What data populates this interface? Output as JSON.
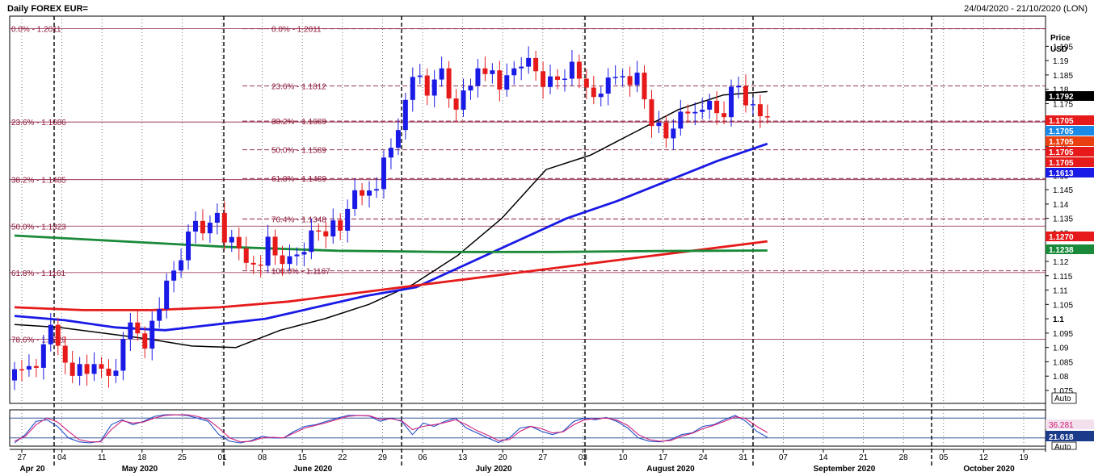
{
  "header": {
    "title": "Daily FOREX EUR=",
    "range": "24/04/2020 - 21/10/2020 (LON)"
  },
  "price_axis": {
    "title": "Price",
    "unit": "USD",
    "auto_label": "Auto",
    "auto_label_lower": "Auto"
  },
  "colors": {
    "up": "#1a1ae6",
    "down": "#e61a1a",
    "ma_black": "#000000",
    "ma_blue": "#1a1ae6",
    "ma_red": "#e61a1a",
    "ma_green": "#1a8a3a",
    "fib": "#8b1a3a",
    "stoch_k": "#2050c8",
    "stoch_d": "#d0207a"
  },
  "chart_data": [
    {
      "type": "candlestick",
      "title": "Daily FOREX EUR=",
      "ylabel": "Price USD",
      "ylim": [
        1.0705,
        1.2055
      ],
      "y_ticks": [
        1.075,
        1.08,
        1.085,
        1.09,
        1.095,
        1.1,
        1.105,
        1.11,
        1.115,
        1.12,
        1.125,
        1.13,
        1.135,
        1.14,
        1.145,
        1.15,
        1.155,
        1.16,
        1.165,
        1.17,
        1.175,
        1.18,
        1.185,
        1.19,
        1.195
      ],
      "y_tick_labels": [
        "1.075",
        "1.08",
        "1.085",
        "1.09",
        "1.095",
        "1.1",
        "1.105",
        "1.11",
        "1.115",
        "1.12",
        "1.125",
        "1.13",
        "1.135",
        "1.14",
        "1.145",
        "1.15",
        "1.155",
        "1.16",
        "1.165",
        "1.17",
        "1.175",
        "1.18",
        "1.185",
        "1.19",
        "1.195"
      ],
      "x_day_labels": [
        "27",
        "04",
        "11",
        "18",
        "25",
        "01",
        "08",
        "15",
        "22",
        "29",
        "06",
        "13",
        "20",
        "27",
        "03",
        "10",
        "17",
        "24",
        "31",
        "07",
        "14",
        "21",
        "28",
        "05",
        "12",
        "19"
      ],
      "x_month_labels": [
        "Apr 20",
        "May 2020",
        "June 2020",
        "July 2020",
        "August 2020",
        "September 2020",
        "October 2020"
      ],
      "close": [
        1.0824,
        1.0823,
        1.0835,
        1.0829,
        1.0911,
        1.0979,
        1.0906,
        1.0847,
        1.0801,
        1.0842,
        1.0808,
        1.0842,
        1.0826,
        1.0801,
        1.0819,
        1.0929,
        1.0987,
        1.0949,
        1.0896,
        1.0993,
        1.1034,
        1.1133,
        1.1168,
        1.1204,
        1.1304,
        1.1341,
        1.1298,
        1.1335,
        1.1369,
        1.1266,
        1.1285,
        1.1245,
        1.1195,
        1.1189,
        1.1185,
        1.1286,
        1.1221,
        1.1191,
        1.1218,
        1.1224,
        1.1233,
        1.1308,
        1.1305,
        1.1287,
        1.1343,
        1.1307,
        1.1383,
        1.1448,
        1.1429,
        1.1447,
        1.1452,
        1.1562,
        1.1596,
        1.1658,
        1.1763,
        1.1843,
        1.1848,
        1.1778,
        1.1834,
        1.1873,
        1.1768,
        1.1729,
        1.1796,
        1.1812,
        1.1873,
        1.1853,
        1.1866,
        1.1799,
        1.1849,
        1.1873,
        1.1879,
        1.1909,
        1.1863,
        1.1808,
        1.1845,
        1.1833,
        1.1837,
        1.1896,
        1.1837,
        1.1806,
        1.1773,
        1.1785,
        1.1841,
        1.1843,
        1.1846,
        1.1815,
        1.1858,
        1.1765,
        1.1672,
        1.1684,
        1.1629,
        1.1663,
        1.1722,
        1.1716,
        1.1721,
        1.1729,
        1.176,
        1.1717,
        1.1703,
        1.1809,
        1.1811,
        1.1744,
        1.1748,
        1.1706,
        1.1705
      ],
      "open_first": 1.0785,
      "moving_averages": [
        {
          "color": "black",
          "values": [
            1.098,
            1.097,
            1.095,
            1.093,
            1.0905,
            1.09,
            1.096,
            1.1,
            1.105,
            1.112,
            1.122,
            1.135,
            1.152,
            1.157,
            1.165,
            1.173,
            1.178,
            1.1792
          ]
        },
        {
          "color": "blue",
          "values": [
            1.101,
            1.0995,
            1.097,
            1.096,
            1.098,
            1.1,
            1.104,
            1.108,
            1.111,
            1.119,
            1.127,
            1.135,
            1.141,
            1.148,
            1.155,
            1.161
          ]
        },
        {
          "color": "red",
          "values": [
            1.104,
            1.103,
            1.103,
            1.104,
            1.106,
            1.109,
            1.112,
            1.115,
            1.118,
            1.121,
            1.124,
            1.127
          ]
        },
        {
          "color": "green",
          "values": [
            1.129,
            1.127,
            1.125,
            1.1237,
            1.1233,
            1.1233,
            1.1236,
            1.1238
          ]
        }
      ],
      "fib_left": [
        {
          "label": "0.0% - 1.2011",
          "value": 1.2011
        },
        {
          "label": "23.6% - 1.1686",
          "value": 1.1686
        },
        {
          "label": "38.2% - 1.1485",
          "value": 1.1485
        },
        {
          "label": "50.0% - 1.1323",
          "value": 1.1323
        },
        {
          "label": "61.8% - 1.1161",
          "value": 1.1161
        },
        {
          "label": "78.6% - 1.0929",
          "value": 1.0929
        }
      ],
      "fib_right": [
        {
          "label": "0.0% - 1.2011",
          "value": 1.2011
        },
        {
          "label": "23.6% - 1.1812",
          "value": 1.1812
        },
        {
          "label": "38.2% - 1.1689",
          "value": 1.1689
        },
        {
          "label": "50.0% - 1.1589",
          "value": 1.1589
        },
        {
          "label": "61.8% - 1.1489",
          "value": 1.1489
        },
        {
          "label": "76.4% - 1.1348",
          "value": 1.1348
        },
        {
          "label": "100.0% - 1.1167",
          "value": 1.1167
        }
      ],
      "price_boxes": [
        {
          "text": "1.1792",
          "color": "#000000",
          "value": 1.1792
        },
        {
          "text": "1.1705",
          "color": "#e61a1a",
          "value": 1.1705
        },
        {
          "text": "1.1705",
          "color": "#1a8ae6",
          "value": 1.1705
        },
        {
          "text": "1.1705",
          "color": "#e84010",
          "value": 1.1705
        },
        {
          "text": "1.1705",
          "color": "#e61a1a",
          "value": 1.1705
        },
        {
          "text": "1.1705",
          "color": "#e61a1a",
          "value": 1.1705
        },
        {
          "text": "1.1613",
          "color": "#1a1ae6",
          "value": 1.1613
        },
        {
          "text": "1.1270",
          "color": "#e61a1a",
          "value": 1.127
        },
        {
          "text": "1.1238",
          "color": "#1a8a3a",
          "value": 1.1238
        }
      ]
    },
    {
      "type": "line",
      "title": "Stochastic",
      "ylim": [
        0,
        100
      ],
      "series": [
        {
          "values": [
            5,
            30,
            70,
            75,
            55,
            20,
            8,
            5,
            10,
            60,
            75,
            60,
            70,
            85,
            90,
            90,
            88,
            80,
            70,
            30,
            10,
            5,
            12,
            25,
            20,
            20,
            40,
            55,
            60,
            70,
            80,
            88,
            88,
            86,
            70,
            80,
            70,
            30,
            65,
            55,
            70,
            80,
            50,
            35,
            20,
            6,
            20,
            50,
            55,
            40,
            30,
            40,
            70,
            80,
            75,
            82,
            70,
            50,
            20,
            10,
            8,
            15,
            30,
            35,
            55,
            60,
            75,
            88,
            70,
            40,
            21.618
          ]
        },
        {
          "values": [
            10,
            25,
            60,
            80,
            68,
            40,
            15,
            8,
            8,
            45,
            72,
            65,
            68,
            80,
            88,
            90,
            90,
            85,
            75,
            50,
            20,
            8,
            10,
            20,
            22,
            20,
            35,
            50,
            58,
            66,
            76,
            85,
            88,
            87,
            76,
            78,
            72,
            45,
            55,
            60,
            66,
            75,
            60,
            42,
            28,
            12,
            15,
            40,
            55,
            48,
            35,
            38,
            60,
            75,
            78,
            80,
            74,
            58,
            30,
            15,
            10,
            12,
            25,
            34,
            48,
            58,
            70,
            84,
            78,
            55,
            36.281
          ]
        }
      ],
      "value_labels": [
        "36.281",
        "21.618"
      ]
    }
  ]
}
